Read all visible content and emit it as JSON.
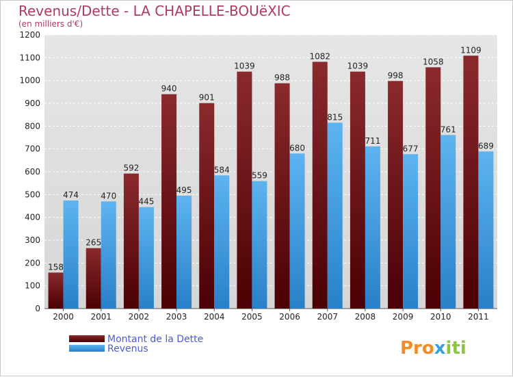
{
  "chart_data": {
    "type": "bar",
    "title": "Revenus/Dette - LA CHAPELLE-BOUëXIC",
    "subtitle": "(en milliers d'€)",
    "categories": [
      "2000",
      "2001",
      "2002",
      "2003",
      "2004",
      "2005",
      "2006",
      "2007",
      "2008",
      "2009",
      "2010",
      "2011"
    ],
    "series": [
      {
        "name": "Montant de la Dette",
        "color": "#6b0f12",
        "values": [
          158,
          265,
          592,
          940,
          901,
          1039,
          988,
          1082,
          1039,
          998,
          1058,
          1109
        ]
      },
      {
        "name": "Revenus",
        "color": "#3d9ee8",
        "values": [
          474,
          470,
          445,
          495,
          584,
          559,
          680,
          815,
          711,
          677,
          761,
          689
        ]
      }
    ],
    "ylim": [
      0,
      1200
    ],
    "yticks": [
      0,
      100,
      200,
      300,
      400,
      500,
      600,
      700,
      800,
      900,
      1000,
      1100,
      1200
    ],
    "grid": true,
    "legend": "bottom-left"
  },
  "logo": {
    "text": "Proxiti",
    "parts": [
      "Pro",
      "x",
      "iti"
    ]
  },
  "colors": {
    "title": "#b03a5b",
    "plot_bg": "#dcdcdc",
    "debt": "#6b0f12",
    "revenue": "#3d9ee8"
  }
}
